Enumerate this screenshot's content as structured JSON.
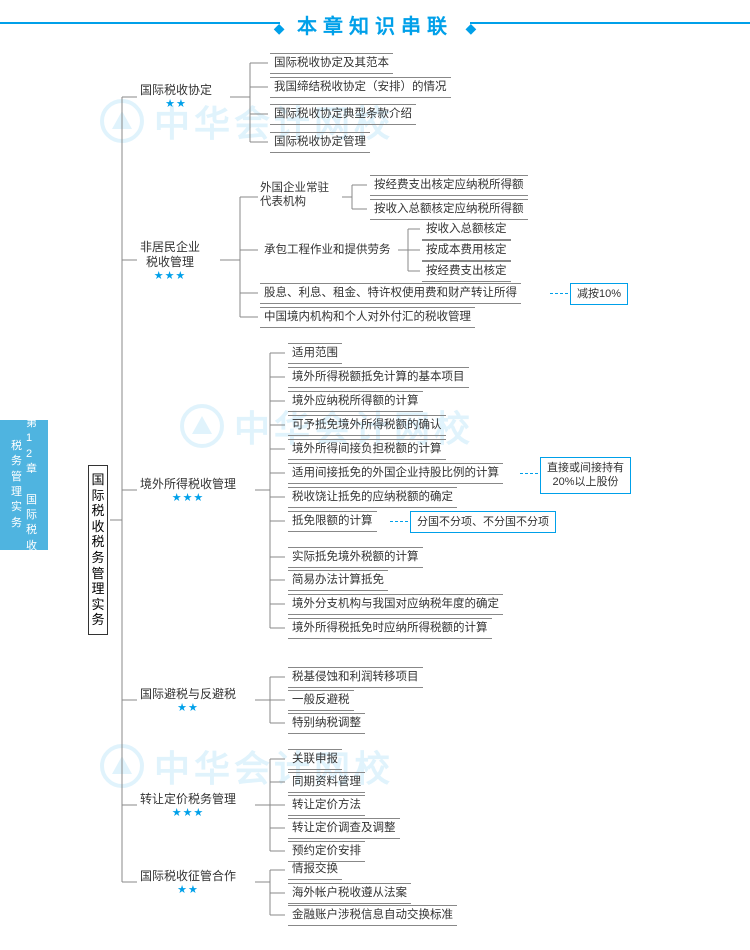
{
  "title": "本章知识串联",
  "sidebar": {
    "col1": "税务管理实务",
    "col2": "第12章 国际税收"
  },
  "root": "国际税收税务管理实务",
  "watermark_text": "中华会计网校",
  "colors": {
    "accent": "#00a0e9",
    "line": "#888888"
  },
  "b2": {
    "n1": {
      "label": "国际税收协定",
      "stars": "★★"
    },
    "n2": {
      "label1": "非居民企业",
      "label2": "税收管理",
      "stars": "★★★"
    },
    "n3": {
      "label": "境外所得税收管理",
      "stars": "★★★"
    },
    "n4": {
      "label": "国际避税与反避税",
      "stars": "★★"
    },
    "n5": {
      "label": "转让定价税务管理",
      "stars": "★★★"
    },
    "n6": {
      "label": "国际税收征管合作",
      "stars": "★★"
    }
  },
  "b3": {
    "g1": [
      "国际税收协定及其范本",
      "我国缔结税收协定（安排）的情况",
      "国际税收协定典型条款介绍",
      "国际税收协定管理"
    ],
    "g2a_label1": "外国企业常驻",
    "g2a_label2": "代表机构",
    "g2a_leaves": [
      "按经费支出核定应纳税所得额",
      "按收入总额核定应纳税所得额"
    ],
    "g2b_label": "承包工程作业和提供劳务",
    "g2b_leaves": [
      "按收入总额核定",
      "按成本费用核定",
      "按经费支出核定"
    ],
    "g2c": "股息、利息、租金、特许权使用费和财产转让所得",
    "g2c_note": "减按10%",
    "g2d": "中国境内机构和个人对外付汇的税收管理",
    "g3": [
      "适用范围",
      "境外所得税额抵免计算的基本项目",
      "境外应纳税所得额的计算",
      "可予抵免境外所得税额的确认",
      "境外所得间接负担税额的计算",
      "适用间接抵免的外国企业持股比例的计算",
      "税收饶让抵免的应纳税额的确定",
      "抵免限额的计算",
      "实际抵免境外税额的计算",
      "简易办法计算抵免",
      "境外分支机构与我国对应纳税年度的确定",
      "境外所得税抵免时应纳所得税额的计算"
    ],
    "g3_note6": "直接或间接持有\n20%以上股份",
    "g3_note8": "分国不分项、不分国不分项",
    "g4": [
      "税基侵蚀和利润转移项目",
      "一般反避税",
      "特别纳税调整"
    ],
    "g5": [
      "关联申报",
      "同期资料管理",
      "转让定价方法",
      "转让定价调查及调整",
      "预约定价安排"
    ],
    "g6": [
      "情报交换",
      "海外帐户税收遵从法案",
      "金融账户涉税信息自动交换标准"
    ]
  }
}
